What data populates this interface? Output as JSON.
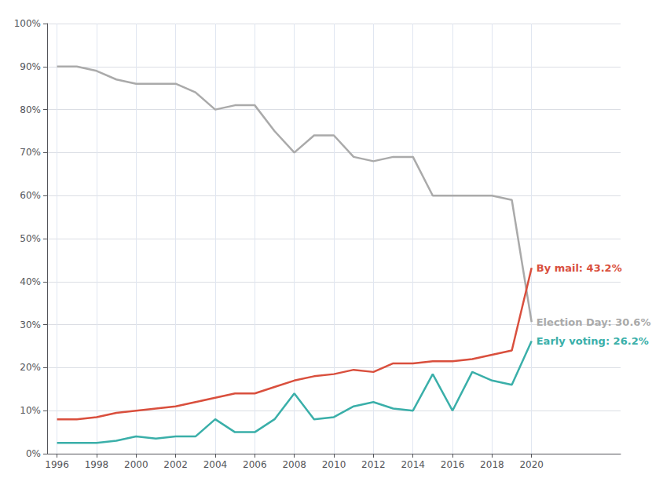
{
  "chart_data": {
    "type": "line",
    "x": [
      1996,
      1997,
      1998,
      1999,
      2000,
      2001,
      2002,
      2003,
      2004,
      2005,
      2006,
      2007,
      2008,
      2009,
      2010,
      2011,
      2012,
      2013,
      2014,
      2015,
      2016,
      2017,
      2018,
      2019,
      2020
    ],
    "series": [
      {
        "color": "#aaaaaa",
        "annotation": "Election Day: 30.6%",
        "values": [
          90,
          90,
          89,
          87,
          86,
          86,
          86,
          84,
          80,
          81,
          81,
          75,
          70,
          74,
          74,
          69,
          68,
          69,
          69,
          60,
          60,
          60,
          60,
          59,
          30.6
        ]
      },
      {
        "color": "#d94f3d",
        "annotation": "By mail: 43.2%",
        "values": [
          8,
          8,
          8.5,
          9.5,
          10,
          10.5,
          11,
          12,
          13,
          14,
          14,
          15.5,
          17,
          18,
          18.5,
          19.5,
          19,
          21,
          21,
          21.5,
          21.5,
          22,
          23,
          24,
          43.2
        ]
      },
      {
        "color": "#3aafa9",
        "annotation": "Early voting: 26.2%",
        "values": [
          2.5,
          2.5,
          2.5,
          3,
          4,
          3.5,
          4,
          4,
          8,
          5,
          5,
          8,
          14,
          8,
          8.5,
          11,
          12,
          10.5,
          10,
          18.5,
          10,
          19,
          17,
          16,
          26.2
        ]
      }
    ],
    "xlim": [
      1995.5,
      2024.5
    ],
    "xticks": [
      1996,
      1998,
      2000,
      2002,
      2004,
      2006,
      2008,
      2010,
      2012,
      2014,
      2016,
      2018,
      2020
    ],
    "ylim": [
      0,
      100
    ],
    "yticks": [
      {
        "value": 0,
        "label": "0%"
      },
      {
        "value": 10,
        "label": "10%"
      },
      {
        "value": 20,
        "label": "20%"
      },
      {
        "value": 30,
        "label": "30%"
      },
      {
        "value": 40,
        "label": "40%"
      },
      {
        "value": 50,
        "label": "50%"
      },
      {
        "value": 60,
        "label": "60%"
      },
      {
        "value": 70,
        "label": "70%"
      },
      {
        "value": 80,
        "label": "80%"
      },
      {
        "value": 90,
        "label": "90%"
      },
      {
        "value": 100,
        "label": "100%"
      }
    ],
    "grid": true
  }
}
